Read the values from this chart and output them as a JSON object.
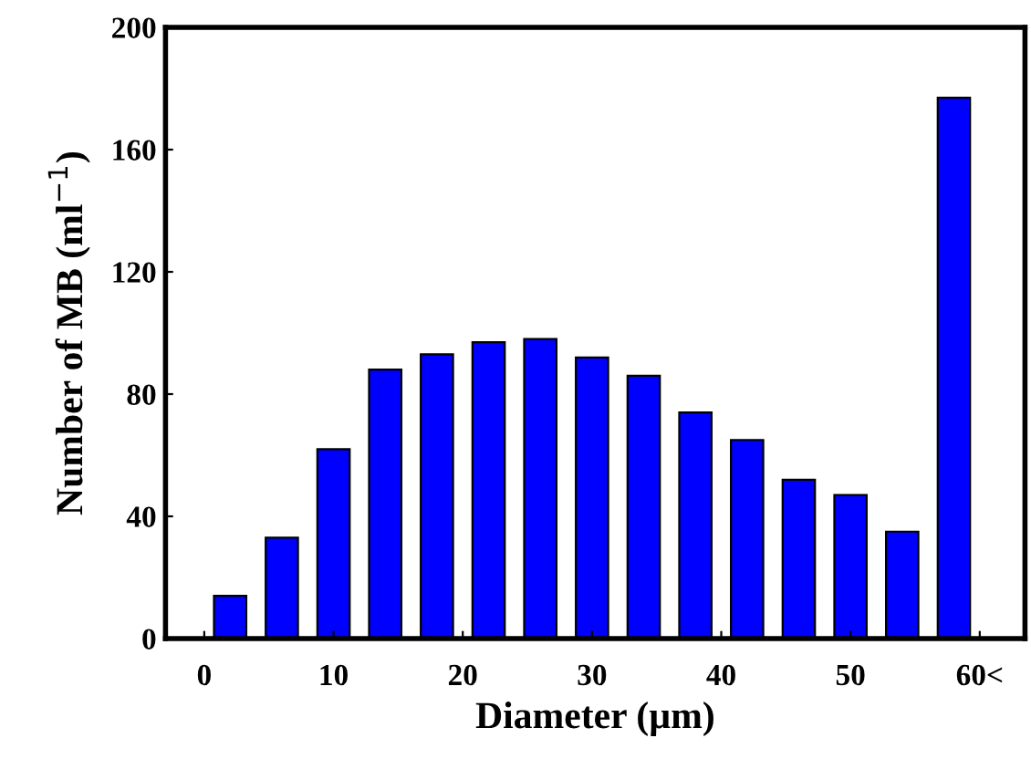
{
  "chart_data": {
    "type": "bar",
    "xlabel": "Diameter (µm)",
    "ylabel": "Number of MB (ml$^{−1}$)",
    "x": [
      2,
      6,
      10,
      14,
      18,
      22,
      26,
      30,
      34,
      38,
      42,
      46,
      50,
      54,
      58
    ],
    "values": [
      14,
      33,
      62,
      88,
      93,
      97,
      98,
      92,
      86,
      74,
      65,
      52,
      47,
      35,
      177
    ],
    "color": "#0000ff",
    "xlim": [
      -3,
      63.5
    ],
    "xticks": [
      0,
      10,
      20,
      30,
      40,
      50,
      {
        "value": 60,
        "label": "60<"
      }
    ],
    "ylim": [
      0,
      200
    ],
    "yticks": [
      0,
      40,
      80,
      120,
      160,
      200
    ],
    "grid": false
  }
}
